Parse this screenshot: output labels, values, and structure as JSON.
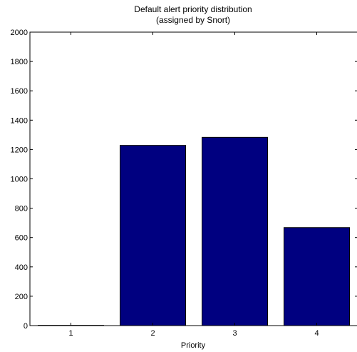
{
  "chart_data": {
    "type": "bar",
    "title": "Default alert priority distribution",
    "subtitle": "(assigned by Snort)",
    "xlabel": "Priority",
    "ylabel": "",
    "categories": [
      "1",
      "2",
      "3",
      "4"
    ],
    "values": [
      2,
      1228,
      1283,
      668
    ],
    "ylim": [
      0,
      2000
    ],
    "yticks": [
      0,
      200,
      400,
      600,
      800,
      1000,
      1200,
      1400,
      1600,
      1800,
      2000
    ],
    "grid": false,
    "bar_color": "#000080"
  }
}
